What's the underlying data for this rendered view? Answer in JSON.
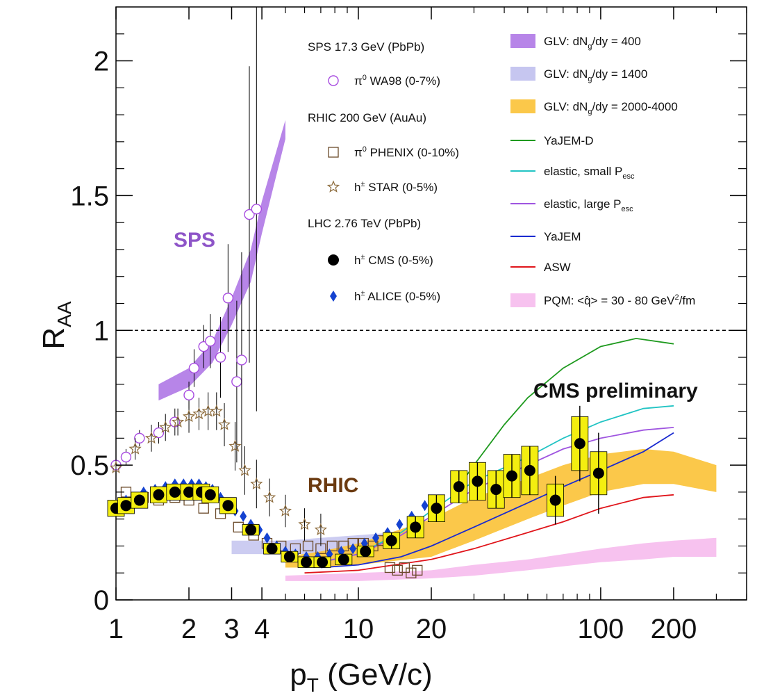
{
  "chart_data": {
    "type": "scatter",
    "title": "",
    "xlabel": "p",
    "xlabel_sub": "T",
    "xlabel_unit": " (GeV/c)",
    "ylabel": "R",
    "ylabel_sub": "AA",
    "xscale": "log",
    "xlim": [
      1,
      400
    ],
    "ylim": [
      0,
      2.2
    ],
    "x_ticks": [
      {
        "value": 1,
        "label": "1"
      },
      {
        "value": 2,
        "label": "2"
      },
      {
        "value": 3,
        "label": "3"
      },
      {
        "value": 4,
        "label": "4"
      },
      {
        "value": 10,
        "label": "10"
      },
      {
        "value": 20,
        "label": "20"
      },
      {
        "value": 100,
        "label": "100"
      },
      {
        "value": 200,
        "label": "200"
      }
    ],
    "y_ticks": [
      {
        "value": 0,
        "label": "0"
      },
      {
        "value": 0.5,
        "label": "0.5"
      },
      {
        "value": 1,
        "label": "1"
      },
      {
        "value": 1.5,
        "label": "1.5"
      },
      {
        "value": 2,
        "label": "2"
      }
    ],
    "reference_line": 1,
    "annotations": {
      "sps": "SPS",
      "rhic": "RHIC",
      "cms_prelim": "CMS preliminary"
    },
    "colors": {
      "sps": "#8e55c8",
      "rhic": "#6b3a10",
      "glv400": "#b785e8",
      "glv1400": "#c6c6f0",
      "glv2000": "#fbc84a",
      "yajemd": "#1f9a1f",
      "elastic_small": "#22c4c4",
      "elastic_large": "#9f55e0",
      "yajem": "#1a2ad0",
      "asw": "#e0151b",
      "pqm": "#f7c2ef",
      "wa98": "#a74be0",
      "phenix": "#6b4a2a",
      "star": "#8c6a3a",
      "alice": "#1442d0",
      "cms_box": "#f4ee10"
    },
    "legend_left": [
      {
        "kind": "header",
        "text": "SPS 17.3 GeV (PbPb)"
      },
      {
        "kind": "marker",
        "marker": "circle-open",
        "prefix": "π",
        "sup": "0",
        "text": "WA98 (0-7%)"
      },
      {
        "kind": "header",
        "text": "RHIC 200 GeV (AuAu)"
      },
      {
        "kind": "marker",
        "marker": "square-open",
        "prefix": "π",
        "sup": "0",
        "text": "PHENIX (0-10%)"
      },
      {
        "kind": "marker",
        "marker": "star-open",
        "prefix": "h",
        "sup": "±",
        "text": "STAR (0-5%)"
      },
      {
        "kind": "header",
        "text": "LHC 2.76 TeV (PbPb)"
      },
      {
        "kind": "marker",
        "marker": "circle-filled",
        "prefix": "h",
        "sup": "±",
        "text": "CMS (0-5%)"
      },
      {
        "kind": "marker",
        "marker": "diamond-filled",
        "prefix": "h",
        "sup": "±",
        "text": "ALICE (0-5%)"
      }
    ],
    "legend_right": [
      {
        "kind": "band",
        "color_key": "glv400",
        "text": "GLV: dN",
        "sub": "g",
        "tail": "/dy = 400"
      },
      {
        "kind": "band",
        "color_key": "glv1400",
        "text": "GLV: dN",
        "sub": "g",
        "tail": "/dy = 1400"
      },
      {
        "kind": "band",
        "color_key": "glv2000",
        "text": "GLV: dN",
        "sub": "g",
        "tail": "/dy = 2000-4000"
      },
      {
        "kind": "line",
        "color_key": "yajemd",
        "text": "YaJEM-D"
      },
      {
        "kind": "line",
        "color_key": "elastic_small",
        "text": "elastic, small P",
        "sub": "esc"
      },
      {
        "kind": "line",
        "color_key": "elastic_large",
        "text": "elastic, large P",
        "sub": "esc"
      },
      {
        "kind": "line",
        "color_key": "yajem",
        "text": "YaJEM"
      },
      {
        "kind": "line",
        "color_key": "asw",
        "text": "ASW"
      },
      {
        "kind": "band",
        "color_key": "pqm",
        "text": "PQM: <q̂> = 30 - 80 GeV",
        "sup": "2",
        "tail": "/fm"
      }
    ],
    "bands": [
      {
        "name": "GLV: dNg/dy = 400",
        "color_key": "glv400",
        "x": [
          1.5,
          2.0,
          2.5,
          3.0,
          3.6,
          4.0,
          5.0
        ],
        "low": [
          0.74,
          0.79,
          0.88,
          1.02,
          1.18,
          1.36,
          1.71
        ],
        "high": [
          0.8,
          0.86,
          0.96,
          1.12,
          1.3,
          1.48,
          1.78
        ]
      },
      {
        "name": "GLV: dNg/dy = 1400",
        "color_key": "glv1400",
        "x": [
          3.0,
          4.0,
          5.0,
          7.0,
          10.0,
          14.0,
          20.0
        ],
        "low": [
          0.17,
          0.17,
          0.17,
          0.17,
          0.18,
          0.18,
          0.19
        ],
        "high": [
          0.22,
          0.22,
          0.22,
          0.23,
          0.24,
          0.25,
          0.27
        ]
      },
      {
        "name": "GLV: dNg/dy = 2000-4000",
        "color_key": "glv2000",
        "x": [
          5,
          7,
          10,
          20,
          30,
          50,
          70,
          100,
          150,
          200,
          300
        ],
        "low": [
          0.12,
          0.12,
          0.13,
          0.16,
          0.22,
          0.3,
          0.35,
          0.4,
          0.43,
          0.43,
          0.4
        ],
        "high": [
          0.16,
          0.18,
          0.21,
          0.3,
          0.38,
          0.45,
          0.5,
          0.54,
          0.56,
          0.55,
          0.5
        ]
      },
      {
        "name": "PQM: <q> = 30 - 80 GeV2/fm",
        "color_key": "pqm",
        "x": [
          5,
          10,
          20,
          30,
          50,
          100,
          150,
          200,
          300
        ],
        "low": [
          0.07,
          0.07,
          0.08,
          0.09,
          0.11,
          0.14,
          0.15,
          0.16,
          0.16
        ],
        "high": [
          0.09,
          0.1,
          0.11,
          0.13,
          0.15,
          0.19,
          0.21,
          0.22,
          0.23
        ]
      }
    ],
    "curves": [
      {
        "name": "YaJEM-D",
        "color_key": "yajemd",
        "x": [
          25,
          30,
          40,
          50,
          70,
          100,
          140,
          200
        ],
        "y": [
          0.4,
          0.5,
          0.65,
          0.75,
          0.86,
          0.94,
          0.97,
          0.95
        ]
      },
      {
        "name": "elastic, small Pesc",
        "color_key": "elastic_small",
        "x": [
          7,
          10,
          15,
          20,
          30,
          50,
          70,
          100,
          150,
          200
        ],
        "y": [
          0.14,
          0.17,
          0.25,
          0.33,
          0.44,
          0.53,
          0.6,
          0.66,
          0.71,
          0.72
        ]
      },
      {
        "name": "elastic, large Pesc",
        "color_key": "elastic_large",
        "x": [
          7,
          10,
          15,
          20,
          30,
          50,
          70,
          100,
          150,
          200
        ],
        "y": [
          0.14,
          0.17,
          0.24,
          0.31,
          0.41,
          0.5,
          0.56,
          0.6,
          0.63,
          0.64
        ]
      },
      {
        "name": "YaJEM",
        "color_key": "yajem",
        "x": [
          7,
          10,
          15,
          20,
          30,
          50,
          70,
          100,
          150,
          200
        ],
        "y": [
          0.12,
          0.13,
          0.16,
          0.2,
          0.27,
          0.36,
          0.42,
          0.48,
          0.55,
          0.62
        ]
      },
      {
        "name": "ASW",
        "color_key": "asw",
        "x": [
          6,
          10,
          20,
          30,
          50,
          70,
          100,
          150,
          200
        ],
        "y": [
          0.1,
          0.11,
          0.15,
          0.19,
          0.25,
          0.29,
          0.34,
          0.38,
          0.39
        ]
      }
    ],
    "series": [
      {
        "name": "WA98 (0-7%)",
        "marker": "circle-open",
        "color_key": "wa98",
        "points": [
          {
            "x": 1.0,
            "y": 0.5,
            "err": 0.03
          },
          {
            "x": 1.1,
            "y": 0.53,
            "err": 0.03
          },
          {
            "x": 1.25,
            "y": 0.6,
            "err": 0.03
          },
          {
            "x": 1.5,
            "y": 0.62,
            "err": 0.04
          },
          {
            "x": 1.75,
            "y": 0.66,
            "err": 0.05
          },
          {
            "x": 2.0,
            "y": 0.76,
            "err": 0.05
          },
          {
            "x": 2.1,
            "y": 0.86,
            "err": 0.07
          },
          {
            "x": 2.3,
            "y": 0.94,
            "err": 0.08
          },
          {
            "x": 2.45,
            "y": 0.96,
            "err": 0.1
          },
          {
            "x": 2.7,
            "y": 0.9,
            "err": 0.15
          },
          {
            "x": 2.9,
            "y": 1.12,
            "err": 0.2
          },
          {
            "x": 3.15,
            "y": 0.81,
            "err": 0.3
          },
          {
            "x": 3.3,
            "y": 0.89,
            "err": 0.4
          },
          {
            "x": 3.55,
            "y": 1.43,
            "err": 0.55
          },
          {
            "x": 3.8,
            "y": 1.45,
            "err": 0.75
          }
        ]
      },
      {
        "name": "PHENIX (0-10%)",
        "marker": "square-open",
        "color_key": "phenix",
        "points": [
          {
            "x": 1.1,
            "y": 0.4
          },
          {
            "x": 1.3,
            "y": 0.38
          },
          {
            "x": 1.5,
            "y": 0.37
          },
          {
            "x": 1.75,
            "y": 0.38
          },
          {
            "x": 2.0,
            "y": 0.37
          },
          {
            "x": 2.3,
            "y": 0.34
          },
          {
            "x": 2.7,
            "y": 0.32
          },
          {
            "x": 3.2,
            "y": 0.27
          },
          {
            "x": 3.7,
            "y": 0.24
          },
          {
            "x": 4.2,
            "y": 0.21
          },
          {
            "x": 4.8,
            "y": 0.2
          },
          {
            "x": 5.5,
            "y": 0.19
          },
          {
            "x": 6.2,
            "y": 0.2
          },
          {
            "x": 7.0,
            "y": 0.19
          },
          {
            "x": 7.8,
            "y": 0.2
          },
          {
            "x": 8.7,
            "y": 0.2
          },
          {
            "x": 9.5,
            "y": 0.21
          },
          {
            "x": 10.5,
            "y": 0.21
          },
          {
            "x": 11.5,
            "y": 0.2
          },
          {
            "x": 12.5,
            "y": 0.22
          },
          {
            "x": 13.5,
            "y": 0.12
          },
          {
            "x": 14.5,
            "y": 0.11
          },
          {
            "x": 15.5,
            "y": 0.12
          },
          {
            "x": 16.5,
            "y": 0.1
          },
          {
            "x": 17.5,
            "y": 0.11
          }
        ]
      },
      {
        "name": "STAR (0-5%)",
        "marker": "star-open",
        "color_key": "star",
        "points": [
          {
            "x": 1.0,
            "y": 0.49,
            "err": 0.04
          },
          {
            "x": 1.2,
            "y": 0.56,
            "err": 0.04
          },
          {
            "x": 1.4,
            "y": 0.6,
            "err": 0.05
          },
          {
            "x": 1.6,
            "y": 0.64,
            "err": 0.05
          },
          {
            "x": 1.8,
            "y": 0.66,
            "err": 0.05
          },
          {
            "x": 2.0,
            "y": 0.68,
            "err": 0.06
          },
          {
            "x": 2.2,
            "y": 0.69,
            "err": 0.06
          },
          {
            "x": 2.4,
            "y": 0.7,
            "err": 0.07
          },
          {
            "x": 2.6,
            "y": 0.7,
            "err": 0.07
          },
          {
            "x": 2.8,
            "y": 0.65,
            "err": 0.08
          },
          {
            "x": 3.1,
            "y": 0.57,
            "err": 0.09
          },
          {
            "x": 3.4,
            "y": 0.48,
            "err": 0.09
          },
          {
            "x": 3.8,
            "y": 0.43,
            "err": 0.09
          },
          {
            "x": 4.3,
            "y": 0.38,
            "err": 0.07
          },
          {
            "x": 5.0,
            "y": 0.33,
            "err": 0.06
          },
          {
            "x": 6.0,
            "y": 0.28,
            "err": 0.06
          },
          {
            "x": 7.0,
            "y": 0.26,
            "err": 0.06
          }
        ]
      },
      {
        "name": "ALICE (0-5%)",
        "marker": "diamond-filled",
        "color_key": "alice",
        "points": [
          {
            "x": 1.0,
            "y": 0.35
          },
          {
            "x": 1.1,
            "y": 0.37
          },
          {
            "x": 1.2,
            "y": 0.38
          },
          {
            "x": 1.3,
            "y": 0.4
          },
          {
            "x": 1.45,
            "y": 0.41
          },
          {
            "x": 1.6,
            "y": 0.42
          },
          {
            "x": 1.75,
            "y": 0.43
          },
          {
            "x": 1.9,
            "y": 0.43
          },
          {
            "x": 2.05,
            "y": 0.43
          },
          {
            "x": 2.2,
            "y": 0.43
          },
          {
            "x": 2.35,
            "y": 0.42
          },
          {
            "x": 2.5,
            "y": 0.41
          },
          {
            "x": 2.7,
            "y": 0.38
          },
          {
            "x": 2.9,
            "y": 0.36
          },
          {
            "x": 3.1,
            "y": 0.33
          },
          {
            "x": 3.35,
            "y": 0.31
          },
          {
            "x": 3.6,
            "y": 0.28
          },
          {
            "x": 3.9,
            "y": 0.26
          },
          {
            "x": 4.2,
            "y": 0.23
          },
          {
            "x": 4.6,
            "y": 0.2
          },
          {
            "x": 5.0,
            "y": 0.18
          },
          {
            "x": 5.5,
            "y": 0.17
          },
          {
            "x": 6.1,
            "y": 0.16
          },
          {
            "x": 6.8,
            "y": 0.16
          },
          {
            "x": 7.6,
            "y": 0.17
          },
          {
            "x": 8.5,
            "y": 0.18
          },
          {
            "x": 9.5,
            "y": 0.19
          },
          {
            "x": 10.6,
            "y": 0.21
          },
          {
            "x": 11.8,
            "y": 0.23
          },
          {
            "x": 13.2,
            "y": 0.25
          },
          {
            "x": 14.8,
            "y": 0.28
          },
          {
            "x": 16.6,
            "y": 0.31
          },
          {
            "x": 18.8,
            "y": 0.35
          }
        ]
      },
      {
        "name": "CMS (0-5%)",
        "marker": "circle-filled",
        "color_key": "cms_box",
        "points": [
          {
            "x": 1.0,
            "y": 0.34,
            "err": 0.02,
            "sys": 0.03
          },
          {
            "x": 1.1,
            "y": 0.35,
            "err": 0.02,
            "sys": 0.03
          },
          {
            "x": 1.25,
            "y": 0.37,
            "err": 0.02,
            "sys": 0.03
          },
          {
            "x": 1.5,
            "y": 0.39,
            "err": 0.02,
            "sys": 0.03
          },
          {
            "x": 1.75,
            "y": 0.4,
            "err": 0.02,
            "sys": 0.03
          },
          {
            "x": 2.0,
            "y": 0.4,
            "err": 0.02,
            "sys": 0.03
          },
          {
            "x": 2.25,
            "y": 0.4,
            "err": 0.02,
            "sys": 0.03
          },
          {
            "x": 2.45,
            "y": 0.39,
            "err": 0.02,
            "sys": 0.03
          },
          {
            "x": 2.9,
            "y": 0.35,
            "err": 0.02,
            "sys": 0.03
          },
          {
            "x": 3.6,
            "y": 0.26,
            "err": 0.02,
            "sys": 0.02
          },
          {
            "x": 4.4,
            "y": 0.19,
            "err": 0.01,
            "sys": 0.02
          },
          {
            "x": 5.2,
            "y": 0.16,
            "err": 0.01,
            "sys": 0.02
          },
          {
            "x": 6.1,
            "y": 0.14,
            "err": 0.01,
            "sys": 0.02
          },
          {
            "x": 7.1,
            "y": 0.14,
            "err": 0.01,
            "sys": 0.02
          },
          {
            "x": 8.7,
            "y": 0.15,
            "err": 0.02,
            "sys": 0.02
          },
          {
            "x": 10.7,
            "y": 0.18,
            "err": 0.02,
            "sys": 0.02
          },
          {
            "x": 13.7,
            "y": 0.22,
            "err": 0.03,
            "sys": 0.03
          },
          {
            "x": 17.2,
            "y": 0.27,
            "err": 0.04,
            "sys": 0.04
          },
          {
            "x": 21.0,
            "y": 0.34,
            "err": 0.05,
            "sys": 0.05
          },
          {
            "x": 26.0,
            "y": 0.42,
            "err": 0.06,
            "sys": 0.06
          },
          {
            "x": 31.0,
            "y": 0.44,
            "err": 0.07,
            "sys": 0.07
          },
          {
            "x": 37.0,
            "y": 0.41,
            "err": 0.07,
            "sys": 0.07
          },
          {
            "x": 43.0,
            "y": 0.46,
            "err": 0.08,
            "sys": 0.08
          },
          {
            "x": 51.0,
            "y": 0.48,
            "err": 0.09,
            "sys": 0.09
          },
          {
            "x": 65.0,
            "y": 0.37,
            "err": 0.09,
            "sys": 0.06
          },
          {
            "x": 82.0,
            "y": 0.58,
            "err": 0.14,
            "sys": 0.1
          },
          {
            "x": 98.0,
            "y": 0.47,
            "err": 0.15,
            "sys": 0.08
          }
        ]
      }
    ]
  }
}
